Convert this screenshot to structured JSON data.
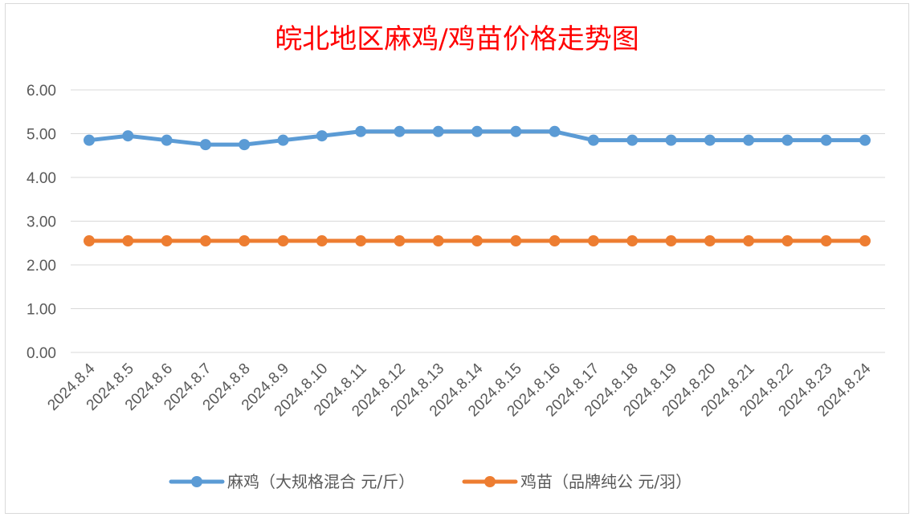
{
  "chart_data": {
    "type": "line",
    "title": "皖北地区麻鸡/鸡苗价格走势图",
    "categories": [
      "2024.8.4",
      "2024.8.5",
      "2024.8.6",
      "2024.8.7",
      "2024.8.8",
      "2024.8.9",
      "2024.8.10",
      "2024.8.11",
      "2024.8.12",
      "2024.8.13",
      "2024.8.14",
      "2024.8.15",
      "2024.8.16",
      "2024.8.17",
      "2024.8.18",
      "2024.8.19",
      "2024.8.20",
      "2024.8.21",
      "2024.8.22",
      "2024.8.23",
      "2024.8.24"
    ],
    "series": [
      {
        "name": "麻鸡（大规格混合 元/斤）",
        "color": "#5b9bd5",
        "values": [
          4.85,
          4.95,
          4.85,
          4.75,
          4.75,
          4.85,
          4.95,
          5.05,
          5.05,
          5.05,
          5.05,
          5.05,
          5.05,
          4.85,
          4.85,
          4.85,
          4.85,
          4.85,
          4.85,
          4.85,
          4.85
        ]
      },
      {
        "name": "鸡苗（品牌纯公 元/羽）",
        "color": "#ed7d31",
        "values": [
          2.55,
          2.55,
          2.55,
          2.55,
          2.55,
          2.55,
          2.55,
          2.55,
          2.55,
          2.55,
          2.55,
          2.55,
          2.55,
          2.55,
          2.55,
          2.55,
          2.55,
          2.55,
          2.55,
          2.55,
          2.55
        ]
      }
    ],
    "yticks": [
      "0.00",
      "1.00",
      "2.00",
      "3.00",
      "4.00",
      "5.00",
      "6.00"
    ],
    "ylim": [
      0,
      6
    ],
    "xlabel": "",
    "ylabel": "",
    "grid": true,
    "legend_position": "bottom"
  }
}
